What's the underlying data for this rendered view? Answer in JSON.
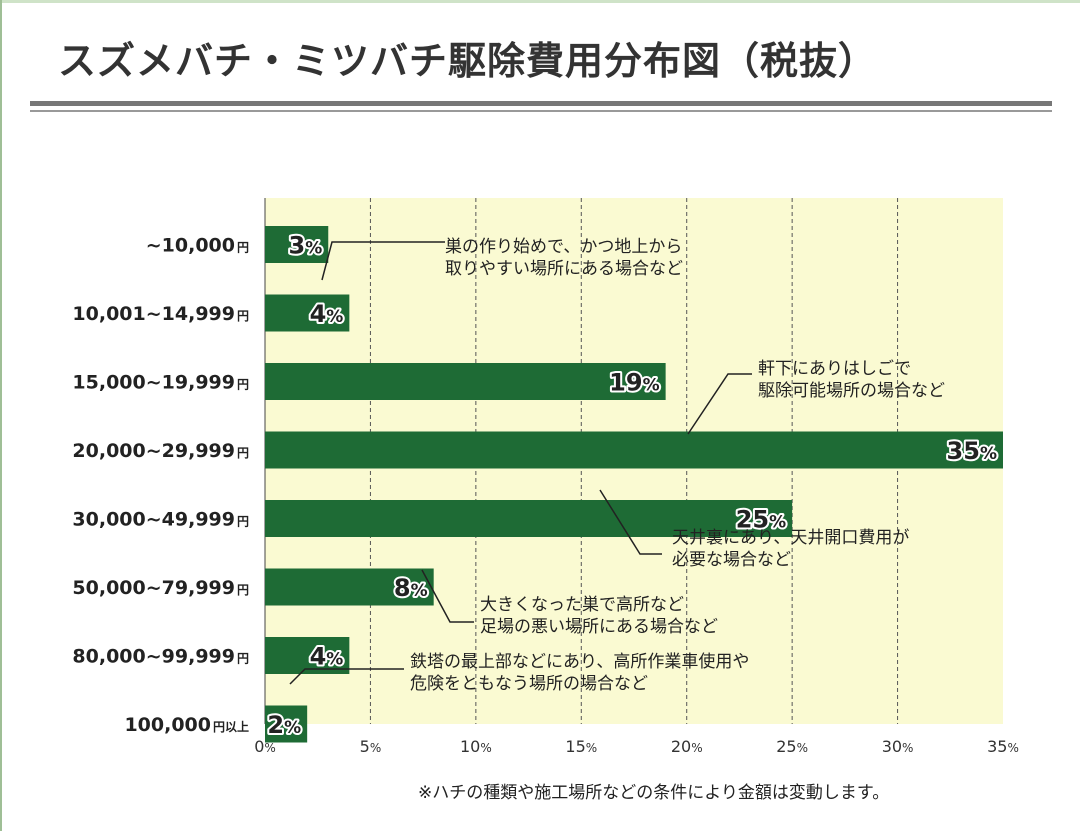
{
  "header": {
    "title": "スズメバチ・ミツバチ駆除費用分布図（税抜）"
  },
  "footnote": "※ハチの種類や施工場所などの条件により金額は変動します。",
  "colors": {
    "bar": "#1e6b35",
    "plot_background": "#fafad2",
    "grid": "#555555"
  },
  "chart_data": {
    "type": "bar",
    "orientation": "horizontal",
    "title": "スズメバチ・ミツバチ駆除費用分布図（税抜）",
    "categories": [
      {
        "amount": "~10,000",
        "unit": "円"
      },
      {
        "amount": "10,001~14,999",
        "unit": "円"
      },
      {
        "amount": "15,000~19,999",
        "unit": "円"
      },
      {
        "amount": "20,000~29,999",
        "unit": "円"
      },
      {
        "amount": "30,000~49,999",
        "unit": "円"
      },
      {
        "amount": "50,000~79,999",
        "unit": "円"
      },
      {
        "amount": "80,000~99,999",
        "unit": "円"
      },
      {
        "amount": "100,000",
        "unit": "円以上"
      }
    ],
    "values": [
      3,
      4,
      19,
      35,
      25,
      8,
      4,
      2
    ],
    "value_suffix": "%",
    "xlim": [
      0,
      35
    ],
    "xticks": [
      0,
      5,
      10,
      15,
      20,
      25,
      30,
      35
    ],
    "tick_suffix": "%",
    "grid": true,
    "annotations": [
      {
        "lines": [
          "巣の作り始めで、かつ地上から",
          "取りやすい場所にある場合など"
        ],
        "category_index": 1
      },
      {
        "lines": [
          "軒下にありはしごで",
          "駆除可能場所の場合など"
        ],
        "category_index": 3
      },
      {
        "lines": [
          "天井裏にあり、天井開口費用が",
          "必要な場合など"
        ],
        "category_index": 4
      },
      {
        "lines": [
          "大きくなった巣で高所など",
          "足場の悪い場所にある場合など"
        ],
        "category_index": 5
      },
      {
        "lines": [
          "鉄塔の最上部などにあり、高所作業車使用や",
          "危険をともなう場所の場合など"
        ],
        "category_index": 7
      }
    ]
  }
}
